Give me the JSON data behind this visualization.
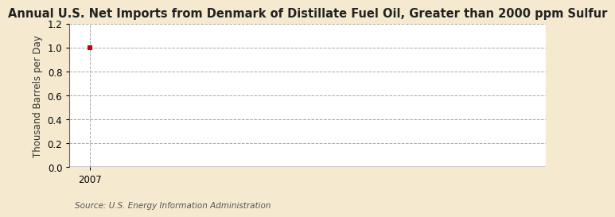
{
  "title": "Annual U.S. Net Imports from Denmark of Distillate Fuel Oil, Greater than 2000 ppm Sulfur",
  "ylabel": "Thousand Barrels per Day",
  "source": "Source: U.S. Energy Information Administration",
  "fig_background_color": "#f5ead0",
  "plot_background_color": "#ffffff",
  "data_x": [
    2007
  ],
  "data_y": [
    1.0
  ],
  "marker_color": "#cc0000",
  "marker_size": 4,
  "ylim": [
    0.0,
    1.2
  ],
  "yticks": [
    0.0,
    0.2,
    0.4,
    0.6,
    0.8,
    1.0,
    1.2
  ],
  "xlim": [
    2006.6,
    2016
  ],
  "xtick_pos": 2007,
  "xtick_label": "2007",
  "grid_color": "#aaaaaa",
  "grid_linestyle": "--",
  "grid_linewidth": 0.7,
  "axis_linewidth": 1.0,
  "title_fontsize": 10.5,
  "ylabel_fontsize": 8.5,
  "tick_fontsize": 8.5,
  "source_fontsize": 7.5
}
